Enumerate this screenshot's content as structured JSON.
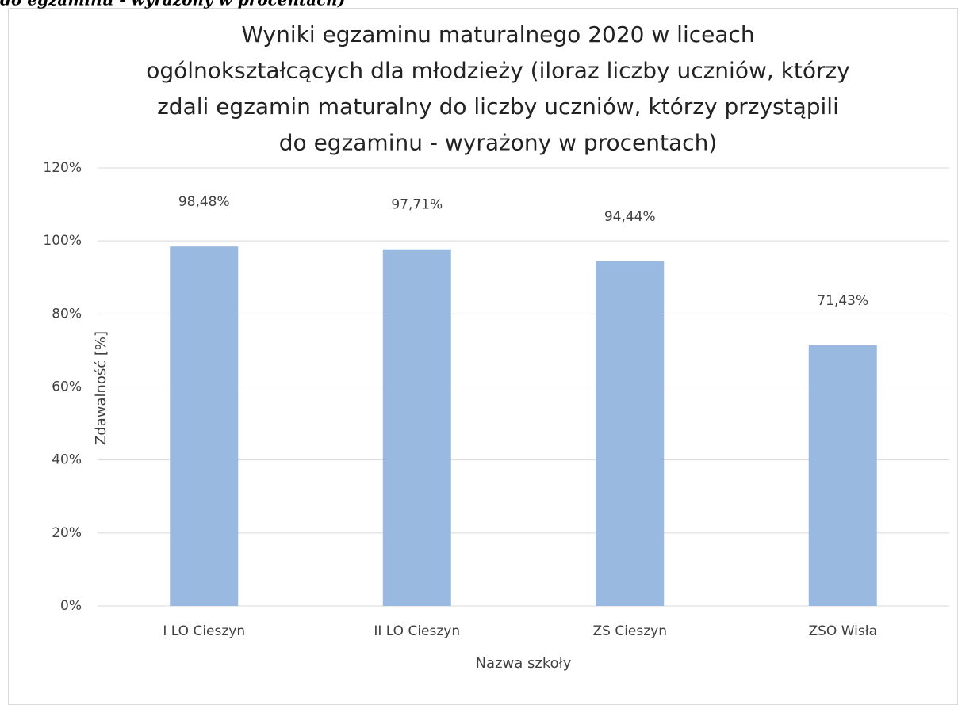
{
  "caption": "do egzaminu - wyrażony w procentach)",
  "chart_data": {
    "type": "bar",
    "title": [
      "Wyniki egzaminu maturalnego 2020 w liceach",
      "ogólnokształcących dla młodzieży (iloraz liczby uczniów, którzy",
      "zdali egzamin maturalny do liczby uczniów, którzy przystąpili",
      "do egzaminu - wyrażony w procentach)"
    ],
    "x_label": "Nazwa szkoły",
    "y_label": "Zdawalność [%]",
    "categories": [
      "I LO Cieszyn",
      "II LO Cieszyn",
      "ZS Cieszyn",
      "ZSO Wisła"
    ],
    "values": [
      98.48,
      97.71,
      94.44,
      71.43
    ],
    "value_labels": [
      "98,48%",
      "97,71%",
      "94,44%",
      "71,43%"
    ],
    "color": "#9ab9e0",
    "ylim": [
      0,
      120
    ],
    "yticks": [
      {
        "value": 0,
        "label": "0%"
      },
      {
        "value": 20,
        "label": "20%"
      },
      {
        "value": 40,
        "label": "40%"
      },
      {
        "value": 60,
        "label": "60%"
      },
      {
        "value": 80,
        "label": "80%"
      },
      {
        "value": 100,
        "label": "100%"
      },
      {
        "value": 120,
        "label": "120%"
      }
    ],
    "grid": true
  }
}
